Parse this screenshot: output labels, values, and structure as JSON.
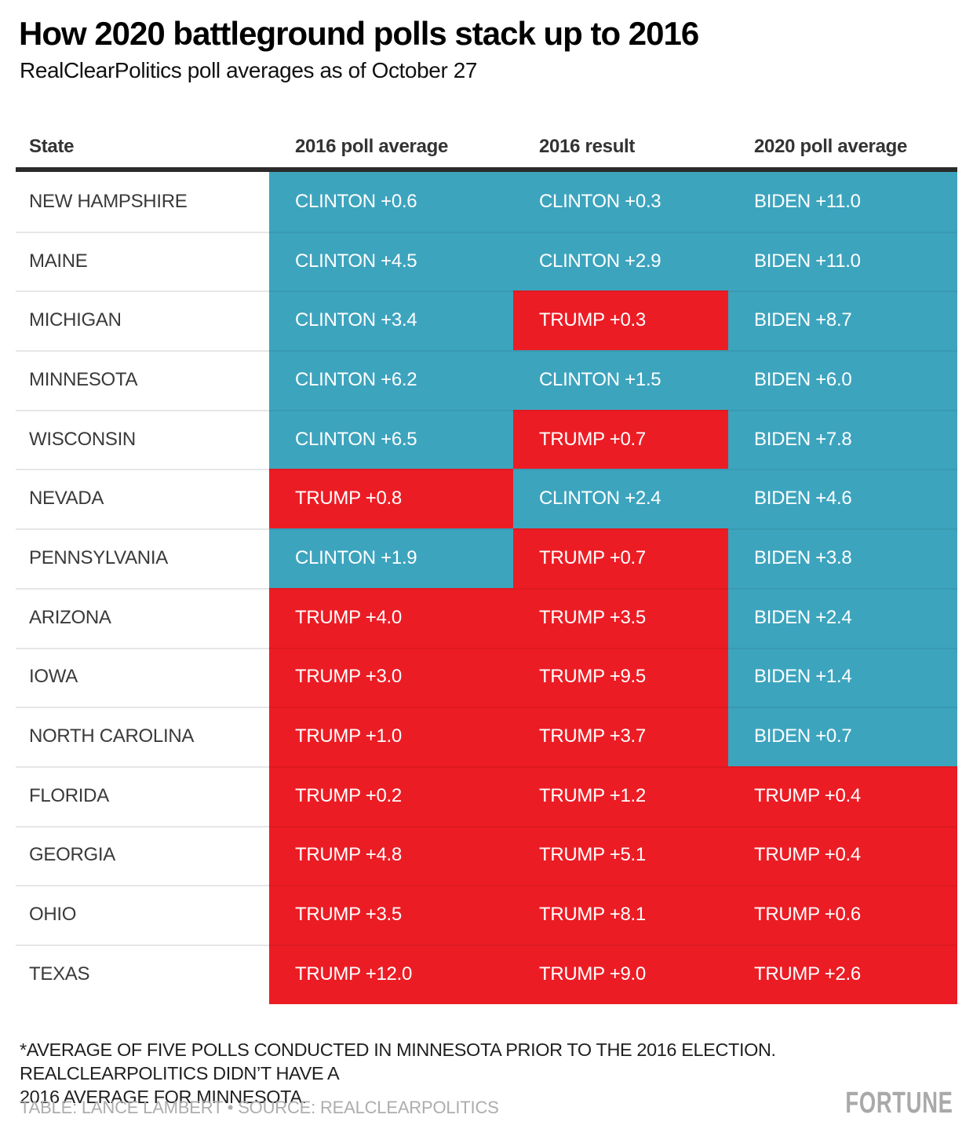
{
  "page": {
    "title": "How 2020 battleground polls stack up to 2016",
    "subtitle": "RealClearPolitics poll averages as of October 27",
    "footnote_lines": [
      "*AVERAGE OF FIVE POLLS CONDUCTED IN MINNESOTA PRIOR TO THE 2016 ELECTION. REALCLEARPOLITICS DIDN’T HAVE A",
      "2016 AVERAGE FOR MINNESOTA."
    ],
    "credit": "TABLE: LANCE LAMBERT • SOURCE: REALCLEARPOLITICS",
    "logo": "FORTUNE"
  },
  "colors": {
    "dem": "#3DA4BE",
    "rep": "#EC1C24",
    "header_rule": "#2B2B2B",
    "row_divider": "#E6E6E6"
  },
  "chart_data": {
    "type": "table",
    "title": "How 2020 battleground polls stack up to 2016",
    "subtitle": "RealClearPolitics poll averages as of October 27",
    "columns": [
      "State",
      "2016 poll average",
      "2016 result",
      "2020 poll average"
    ],
    "legend_position": "none",
    "grid": "row-dividers",
    "rows": [
      {
        "state": "NEW HAMPSHIRE",
        "cells": [
          {
            "text": "CLINTON +0.6",
            "party": "dem"
          },
          {
            "text": "CLINTON +0.3",
            "party": "dem"
          },
          {
            "text": "BIDEN +11.0",
            "party": "dem"
          }
        ]
      },
      {
        "state": "MAINE",
        "cells": [
          {
            "text": "CLINTON +4.5",
            "party": "dem"
          },
          {
            "text": "CLINTON +2.9",
            "party": "dem"
          },
          {
            "text": "BIDEN +11.0",
            "party": "dem"
          }
        ]
      },
      {
        "state": "MICHIGAN",
        "cells": [
          {
            "text": "CLINTON +3.4",
            "party": "dem"
          },
          {
            "text": "TRUMP +0.3",
            "party": "rep"
          },
          {
            "text": "BIDEN +8.7",
            "party": "dem"
          }
        ]
      },
      {
        "state": "MINNESOTA",
        "cells": [
          {
            "text": "CLINTON +6.2",
            "party": "dem"
          },
          {
            "text": "CLINTON +1.5",
            "party": "dem"
          },
          {
            "text": "BIDEN +6.0",
            "party": "dem"
          }
        ]
      },
      {
        "state": "WISCONSIN",
        "cells": [
          {
            "text": "CLINTON +6.5",
            "party": "dem"
          },
          {
            "text": "TRUMP +0.7",
            "party": "rep"
          },
          {
            "text": "BIDEN +7.8",
            "party": "dem"
          }
        ]
      },
      {
        "state": "NEVADA",
        "cells": [
          {
            "text": "TRUMP +0.8",
            "party": "rep"
          },
          {
            "text": "CLINTON +2.4",
            "party": "dem"
          },
          {
            "text": "BIDEN +4.6",
            "party": "dem"
          }
        ]
      },
      {
        "state": "PENNSYLVANIA",
        "cells": [
          {
            "text": "CLINTON +1.9",
            "party": "dem"
          },
          {
            "text": "TRUMP +0.7",
            "party": "rep"
          },
          {
            "text": "BIDEN +3.8",
            "party": "dem"
          }
        ]
      },
      {
        "state": "ARIZONA",
        "cells": [
          {
            "text": "TRUMP +4.0",
            "party": "rep"
          },
          {
            "text": "TRUMP +3.5",
            "party": "rep"
          },
          {
            "text": "BIDEN +2.4",
            "party": "dem"
          }
        ]
      },
      {
        "state": "IOWA",
        "cells": [
          {
            "text": "TRUMP +3.0",
            "party": "rep"
          },
          {
            "text": "TRUMP +9.5",
            "party": "rep"
          },
          {
            "text": "BIDEN +1.4",
            "party": "dem"
          }
        ]
      },
      {
        "state": "NORTH CAROLINA",
        "cells": [
          {
            "text": "TRUMP +1.0",
            "party": "rep"
          },
          {
            "text": "TRUMP +3.7",
            "party": "rep"
          },
          {
            "text": "BIDEN +0.7",
            "party": "dem"
          }
        ]
      },
      {
        "state": "FLORIDA",
        "cells": [
          {
            "text": "TRUMP +0.2",
            "party": "rep"
          },
          {
            "text": "TRUMP +1.2",
            "party": "rep"
          },
          {
            "text": "TRUMP +0.4",
            "party": "rep"
          }
        ]
      },
      {
        "state": "GEORGIA",
        "cells": [
          {
            "text": "TRUMP +4.8",
            "party": "rep"
          },
          {
            "text": "TRUMP +5.1",
            "party": "rep"
          },
          {
            "text": "TRUMP +0.4",
            "party": "rep"
          }
        ]
      },
      {
        "state": "OHIO",
        "cells": [
          {
            "text": "TRUMP +3.5",
            "party": "rep"
          },
          {
            "text": "TRUMP +8.1",
            "party": "rep"
          },
          {
            "text": "TRUMP +0.6",
            "party": "rep"
          }
        ]
      },
      {
        "state": "TEXAS",
        "cells": [
          {
            "text": "TRUMP +12.0",
            "party": "rep"
          },
          {
            "text": "TRUMP +9.0",
            "party": "rep"
          },
          {
            "text": "TRUMP +2.6",
            "party": "rep"
          }
        ]
      }
    ]
  }
}
